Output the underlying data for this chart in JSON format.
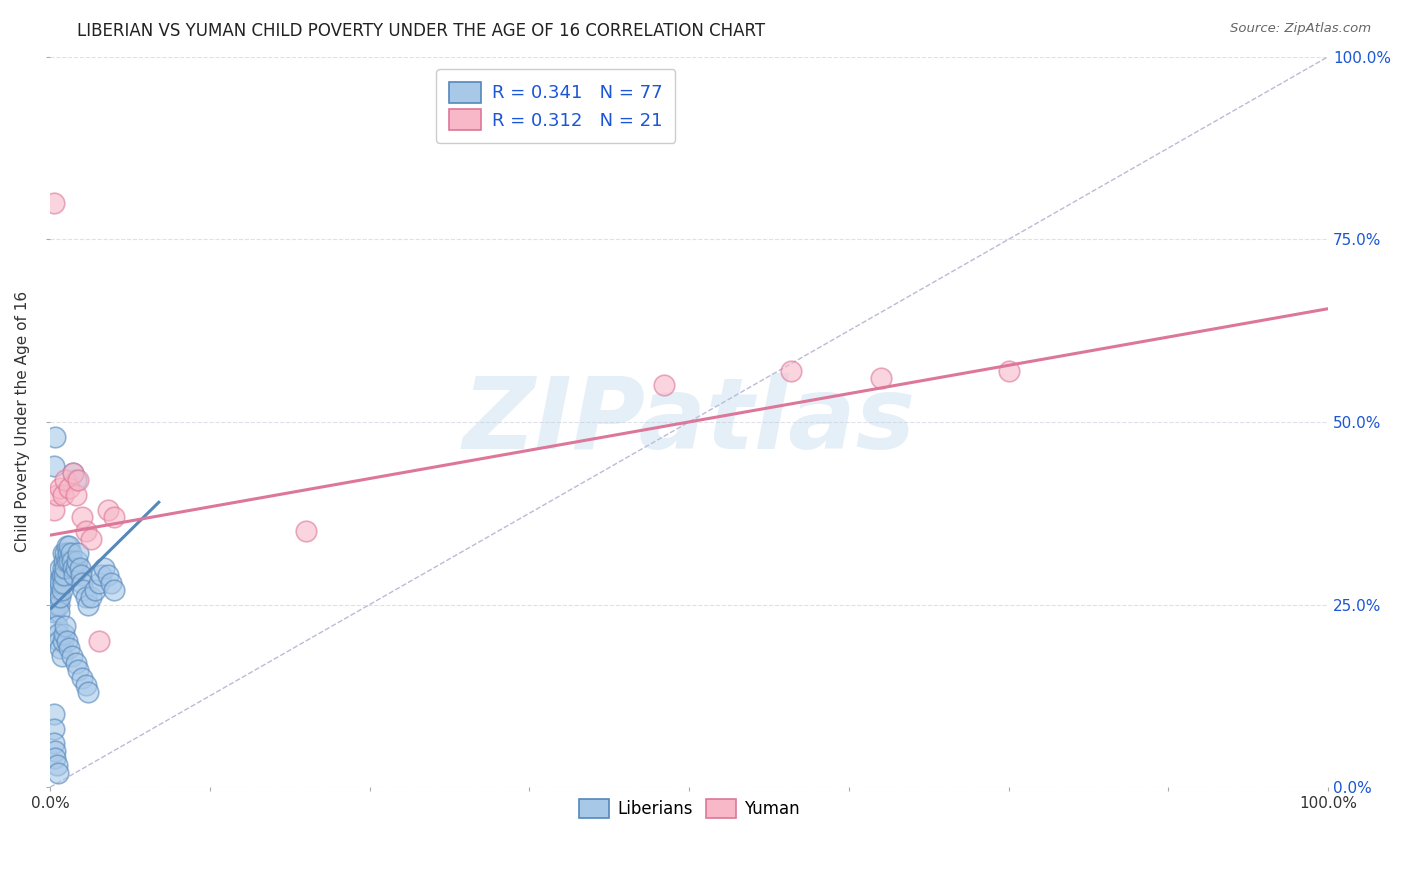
{
  "title": "LIBERIAN VS YUMAN CHILD POVERTY UNDER THE AGE OF 16 CORRELATION CHART",
  "source": "Source: ZipAtlas.com",
  "ylabel": "Child Poverty Under the Age of 16",
  "xlim": [
    0,
    1
  ],
  "ylim": [
    0,
    1
  ],
  "xticks": [
    0.0,
    0.125,
    0.25,
    0.375,
    0.5,
    0.625,
    0.75,
    0.875,
    1.0
  ],
  "yticks": [
    0.0,
    0.25,
    0.5,
    0.75,
    1.0
  ],
  "xtick_labels": [
    "0.0%",
    "",
    "",
    "",
    "",
    "",
    "",
    "",
    "100.0%"
  ],
  "ytick_labels_right": [
    "0.0%",
    "25.0%",
    "50.0%",
    "75.0%",
    "100.0%"
  ],
  "watermark": "ZIPatlas",
  "watermark_color": "#aacce8",
  "background_color": "#ffffff",
  "grid_color": "#e0e0e8",
  "liberian_color": "#a8c8e8",
  "liberian_edge": "#5588bb",
  "liberian_R": 0.341,
  "liberian_N": 77,
  "liberian_label": "Liberians",
  "yuman_color": "#f8b8c8",
  "yuman_edge": "#dd7799",
  "yuman_R": 0.312,
  "yuman_N": 21,
  "yuman_label": "Yuman",
  "legend_color": "#1a56d6",
  "liberian_x": [
    0.003,
    0.003,
    0.003,
    0.004,
    0.004,
    0.005,
    0.005,
    0.006,
    0.006,
    0.007,
    0.007,
    0.007,
    0.008,
    0.008,
    0.008,
    0.009,
    0.009,
    0.01,
    0.01,
    0.01,
    0.011,
    0.011,
    0.012,
    0.012,
    0.013,
    0.013,
    0.014,
    0.015,
    0.015,
    0.016,
    0.017,
    0.018,
    0.019,
    0.02,
    0.021,
    0.022,
    0.023,
    0.024,
    0.025,
    0.026,
    0.028,
    0.03,
    0.032,
    0.035,
    0.038,
    0.04,
    0.042,
    0.045,
    0.048,
    0.05,
    0.005,
    0.006,
    0.007,
    0.008,
    0.009,
    0.01,
    0.011,
    0.012,
    0.013,
    0.015,
    0.017,
    0.02,
    0.022,
    0.025,
    0.028,
    0.03,
    0.003,
    0.004,
    0.018,
    0.02,
    0.003,
    0.003,
    0.003,
    0.004,
    0.004,
    0.005,
    0.006
  ],
  "liberian_y": [
    0.27,
    0.25,
    0.24,
    0.26,
    0.28,
    0.27,
    0.25,
    0.26,
    0.28,
    0.27,
    0.25,
    0.24,
    0.26,
    0.28,
    0.3,
    0.27,
    0.29,
    0.28,
    0.3,
    0.32,
    0.29,
    0.31,
    0.3,
    0.32,
    0.31,
    0.33,
    0.32,
    0.31,
    0.33,
    0.32,
    0.31,
    0.3,
    0.29,
    0.3,
    0.31,
    0.32,
    0.3,
    0.29,
    0.28,
    0.27,
    0.26,
    0.25,
    0.26,
    0.27,
    0.28,
    0.29,
    0.3,
    0.29,
    0.28,
    0.27,
    0.22,
    0.21,
    0.2,
    0.19,
    0.18,
    0.2,
    0.21,
    0.22,
    0.2,
    0.19,
    0.18,
    0.17,
    0.16,
    0.15,
    0.14,
    0.13,
    0.44,
    0.48,
    0.43,
    0.42,
    0.1,
    0.08,
    0.06,
    0.05,
    0.04,
    0.03,
    0.02
  ],
  "yuman_x": [
    0.003,
    0.005,
    0.008,
    0.01,
    0.012,
    0.015,
    0.018,
    0.02,
    0.022,
    0.025,
    0.028,
    0.032,
    0.038,
    0.045,
    0.05,
    0.2,
    0.48,
    0.58,
    0.65,
    0.75,
    0.003
  ],
  "yuman_y": [
    0.38,
    0.4,
    0.41,
    0.4,
    0.42,
    0.41,
    0.43,
    0.4,
    0.42,
    0.37,
    0.35,
    0.34,
    0.2,
    0.38,
    0.37,
    0.35,
    0.55,
    0.57,
    0.56,
    0.57,
    0.8
  ],
  "ref_line_color": "#aaaacc",
  "blue_trend_x": [
    0.001,
    0.085
  ],
  "blue_trend_y": [
    0.245,
    0.39
  ],
  "pink_trend_x": [
    0.0,
    1.0
  ],
  "pink_trend_y": [
    0.345,
    0.655
  ]
}
